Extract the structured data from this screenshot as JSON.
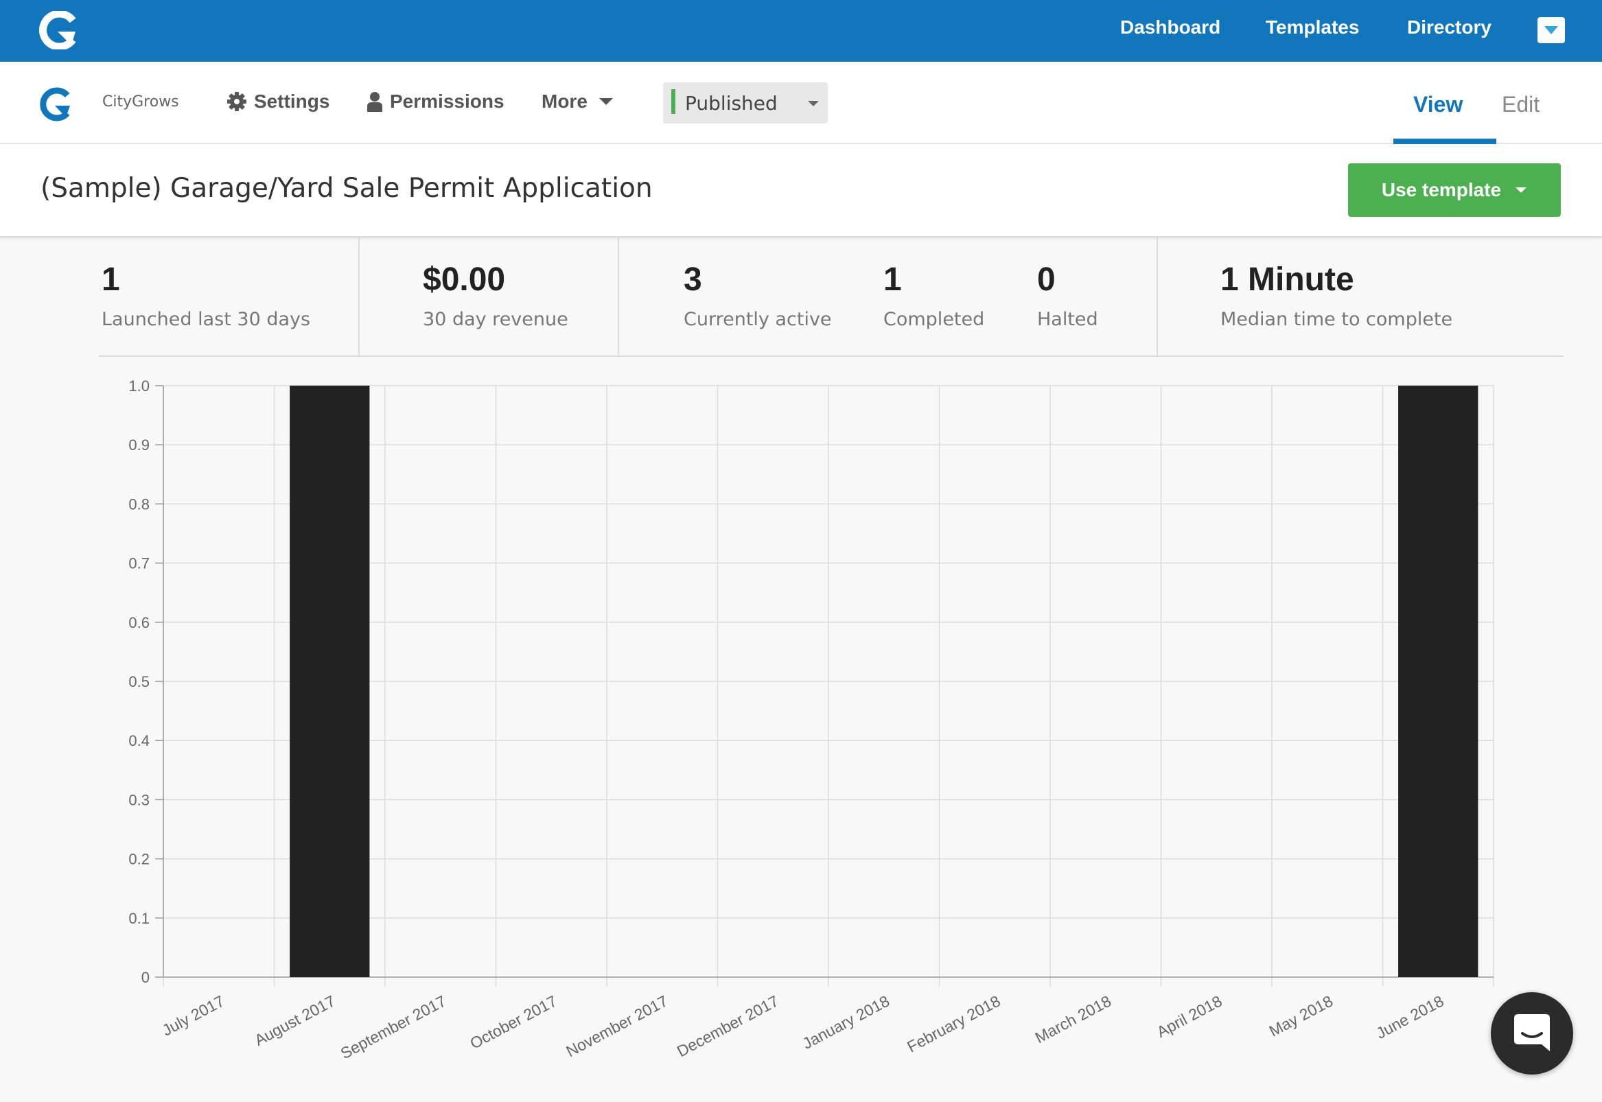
{
  "topbar": {
    "nav": [
      "Dashboard",
      "Templates",
      "Directory"
    ],
    "logo_icon": "citygrows-logo-icon",
    "dropdown_icon": "caret-down-icon"
  },
  "subbar": {
    "org_name": "CityGrows",
    "settings_label": "Settings",
    "permissions_label": "Permissions",
    "more_label": "More",
    "status": {
      "label": "Published",
      "color": "#4caf50"
    },
    "tabs": {
      "view": "View",
      "edit": "Edit",
      "active": "View"
    }
  },
  "page": {
    "title": "(Sample) Garage/Yard Sale Permit Application",
    "use_template_label": "Use template"
  },
  "stats": {
    "launched": {
      "value": "1",
      "label": "Launched last 30 days"
    },
    "revenue": {
      "value": "$0.00",
      "label": "30 day revenue"
    },
    "active": {
      "value": "3",
      "label": "Currently active"
    },
    "completed": {
      "value": "1",
      "label": "Completed"
    },
    "halted": {
      "value": "0",
      "label": "Halted"
    },
    "median": {
      "value": "1 Minute",
      "label": "Median time to complete"
    }
  },
  "chart_data": {
    "type": "bar",
    "categories": [
      "July 2017",
      "August 2017",
      "September 2017",
      "October 2017",
      "November 2017",
      "December 2017",
      "January 2018",
      "February 2018",
      "March 2018",
      "April 2018",
      "May 2018",
      "June 2018"
    ],
    "values": [
      0,
      1,
      0,
      0,
      0,
      0,
      0,
      0,
      0,
      0,
      0,
      1
    ],
    "yticks": [
      "0",
      "0.1",
      "0.2",
      "0.3",
      "0.4",
      "0.5",
      "0.6",
      "0.7",
      "0.8",
      "0.9",
      "1.0"
    ],
    "ylim": [
      0,
      1
    ],
    "grid": true,
    "bar_color": "#222222"
  },
  "colors": {
    "brand_blue": "#1276bd",
    "success_green": "#4caf50"
  }
}
